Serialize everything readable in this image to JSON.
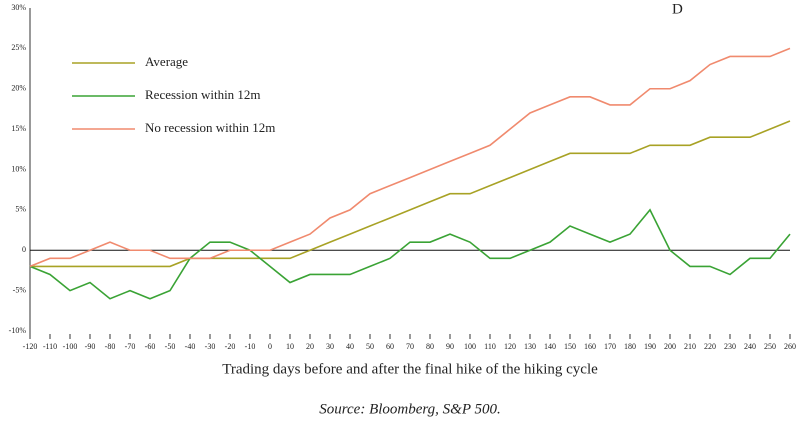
{
  "chart_data": {
    "type": "line",
    "annotation": "D",
    "xlabel": "Trading days before and after the final hike of the hiking cycle",
    "source": "Source: Bloomberg, S&P 500.",
    "x": [
      -120,
      -110,
      -100,
      -90,
      -80,
      -70,
      -60,
      -50,
      -40,
      -30,
      -20,
      -10,
      0,
      10,
      20,
      30,
      40,
      50,
      60,
      70,
      80,
      90,
      100,
      110,
      120,
      130,
      140,
      150,
      160,
      170,
      180,
      190,
      200,
      210,
      220,
      230,
      240,
      250,
      260
    ],
    "series": [
      {
        "name": "Average",
        "color": "#a8a225",
        "values": [
          -2,
          -2,
          -2,
          -2,
          -2,
          -2,
          -2,
          -2,
          -1,
          -1,
          -1,
          -1,
          -1,
          -1,
          0,
          1,
          2,
          3,
          4,
          5,
          6,
          7,
          7,
          8,
          9,
          10,
          11,
          12,
          12,
          12,
          12,
          13,
          13,
          13,
          14,
          14,
          14,
          15,
          16
        ]
      },
      {
        "name": "Recession within 12m",
        "color": "#3aa335",
        "values": [
          -2,
          -3,
          -5,
          -4,
          -6,
          -5,
          -6,
          -5,
          -1,
          1,
          1,
          0,
          -2,
          -4,
          -3,
          -3,
          -3,
          -2,
          -1,
          1,
          1,
          2,
          1,
          -1,
          -1,
          0,
          1,
          3,
          2,
          1,
          2,
          5,
          0,
          -2,
          -2,
          -3,
          -1,
          -1,
          2
        ]
      },
      {
        "name": "No recession within 12m",
        "color": "#f08a6e",
        "values": [
          -2,
          -1,
          -1,
          0,
          1,
          0,
          0,
          -1,
          -1,
          -1,
          0,
          0,
          0,
          1,
          2,
          4,
          5,
          7,
          8,
          9,
          10,
          11,
          12,
          13,
          15,
          17,
          18,
          19,
          19,
          18,
          18,
          20,
          20,
          21,
          23,
          24,
          24,
          24,
          25
        ]
      }
    ],
    "xlim": [
      -120,
      260
    ],
    "xticks": [
      -120,
      -110,
      -100,
      -90,
      -80,
      -70,
      -60,
      -50,
      -40,
      -30,
      -20,
      -10,
      0,
      10,
      20,
      30,
      40,
      50,
      60,
      70,
      80,
      90,
      100,
      110,
      120,
      130,
      140,
      150,
      160,
      170,
      180,
      190,
      200,
      210,
      220,
      230,
      240,
      250,
      260
    ],
    "ylim": [
      -10,
      30
    ],
    "yticks": [
      {
        "value": -10,
        "label": "-10%"
      },
      {
        "value": -5,
        "label": "-5%"
      },
      0,
      {
        "value": 5,
        "label": "5%"
      },
      {
        "value": 10,
        "label": "10%"
      },
      {
        "value": 15,
        "label": "15%"
      },
      {
        "value": 20,
        "label": "20%"
      },
      {
        "value": 25,
        "label": "25%"
      },
      {
        "value": 30,
        "label": "30%"
      }
    ]
  }
}
